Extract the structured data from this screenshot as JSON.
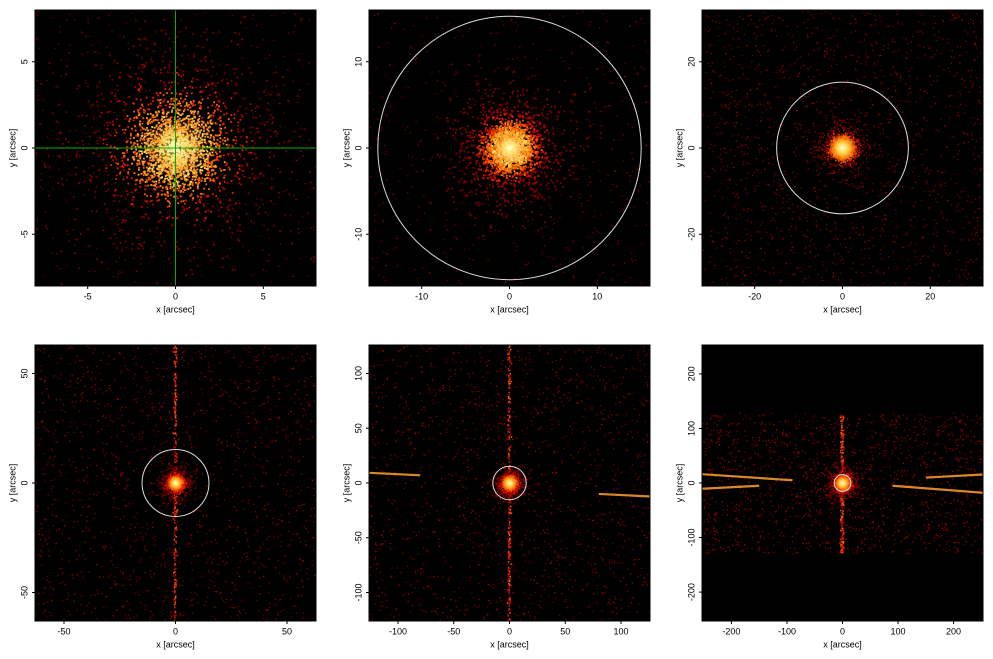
{
  "chart_data": [
    {
      "type": "image",
      "xlabel": "x [arcsec]",
      "ylabel": "y [arcsec]",
      "xlim": [
        -8,
        8
      ],
      "ylim": [
        -8,
        8
      ],
      "xticks": [
        -5,
        0,
        5
      ],
      "yticks": [
        -5,
        0,
        5
      ]
    },
    {
      "type": "image",
      "xlabel": "x [arcsec]",
      "ylabel": "y [arcsec]",
      "xlim": [
        -16,
        16
      ],
      "ylim": [
        -16,
        16
      ],
      "xticks": [
        -10,
        0,
        10
      ],
      "yticks": [
        -10,
        0,
        10
      ]
    },
    {
      "type": "image",
      "xlabel": "x [arcsec]",
      "ylabel": "y [arcsec]",
      "xlim": [
        -32,
        32
      ],
      "ylim": [
        -32,
        32
      ],
      "xticks": [
        -20,
        0,
        20
      ],
      "yticks": [
        -20,
        0,
        20
      ]
    },
    {
      "type": "image",
      "xlabel": "x [arcsec]",
      "ylabel": "y [arcsec]",
      "xlim": [
        -63,
        63
      ],
      "ylim": [
        -63,
        63
      ],
      "xticks": [
        -50,
        0,
        50
      ],
      "yticks": [
        -50,
        0,
        50
      ]
    },
    {
      "type": "image",
      "xlabel": "x [arcsec]",
      "ylabel": "y [arcsec]",
      "xlim": [
        -126,
        126
      ],
      "ylim": [
        -126,
        126
      ],
      "xticks": [
        -100,
        -50,
        0,
        50,
        100
      ],
      "yticks": [
        -100,
        -50,
        0,
        50,
        100
      ]
    },
    {
      "type": "image",
      "xlabel": "x [arcsec]",
      "ylabel": "y [arcsec]",
      "xlim": [
        -253,
        253
      ],
      "ylim": [
        -253,
        253
      ],
      "xticks": [
        -200,
        -100,
        0,
        100,
        200
      ],
      "yticks": [
        -200,
        -100,
        0,
        100,
        200
      ]
    }
  ]
}
